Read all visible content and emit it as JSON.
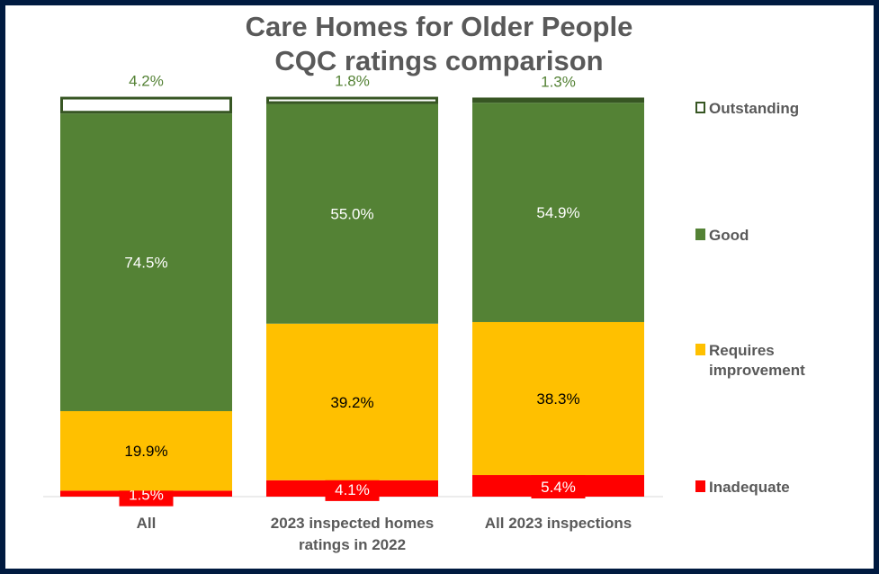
{
  "chart_data": {
    "type": "bar",
    "stacked": true,
    "title": [
      "Care Homes for Older People",
      "CQC ratings comparison"
    ],
    "categories": [
      [
        "All"
      ],
      [
        "2023 inspected homes",
        "ratings in 2022"
      ],
      [
        "All 2023 inspections"
      ]
    ],
    "series": [
      {
        "name": "Inadequate",
        "color": "#ff0000",
        "values": [
          1.5,
          4.1,
          5.4
        ],
        "labels": [
          "1.5%",
          "4.1%",
          "5.4%"
        ]
      },
      {
        "name": "Requires improvement",
        "legend_lines": [
          "Requires",
          "improvement"
        ],
        "color": "#ffc000",
        "values": [
          19.9,
          39.2,
          38.3
        ],
        "labels": [
          "19.9%",
          "39.2%",
          "38.3%"
        ]
      },
      {
        "name": "Good",
        "color": "#548235",
        "values": [
          74.5,
          55.0,
          54.9
        ],
        "labels": [
          "74.5%",
          "55.0%",
          "54.9%"
        ]
      },
      {
        "name": "Outstanding",
        "color": "#ffffff",
        "outline": "#375623",
        "values": [
          4.2,
          1.8,
          1.3
        ],
        "labels": [
          "4.2%",
          "1.8%",
          "1.3%"
        ]
      }
    ],
    "ylim": [
      0,
      100
    ],
    "legend": "right",
    "grid": false
  }
}
